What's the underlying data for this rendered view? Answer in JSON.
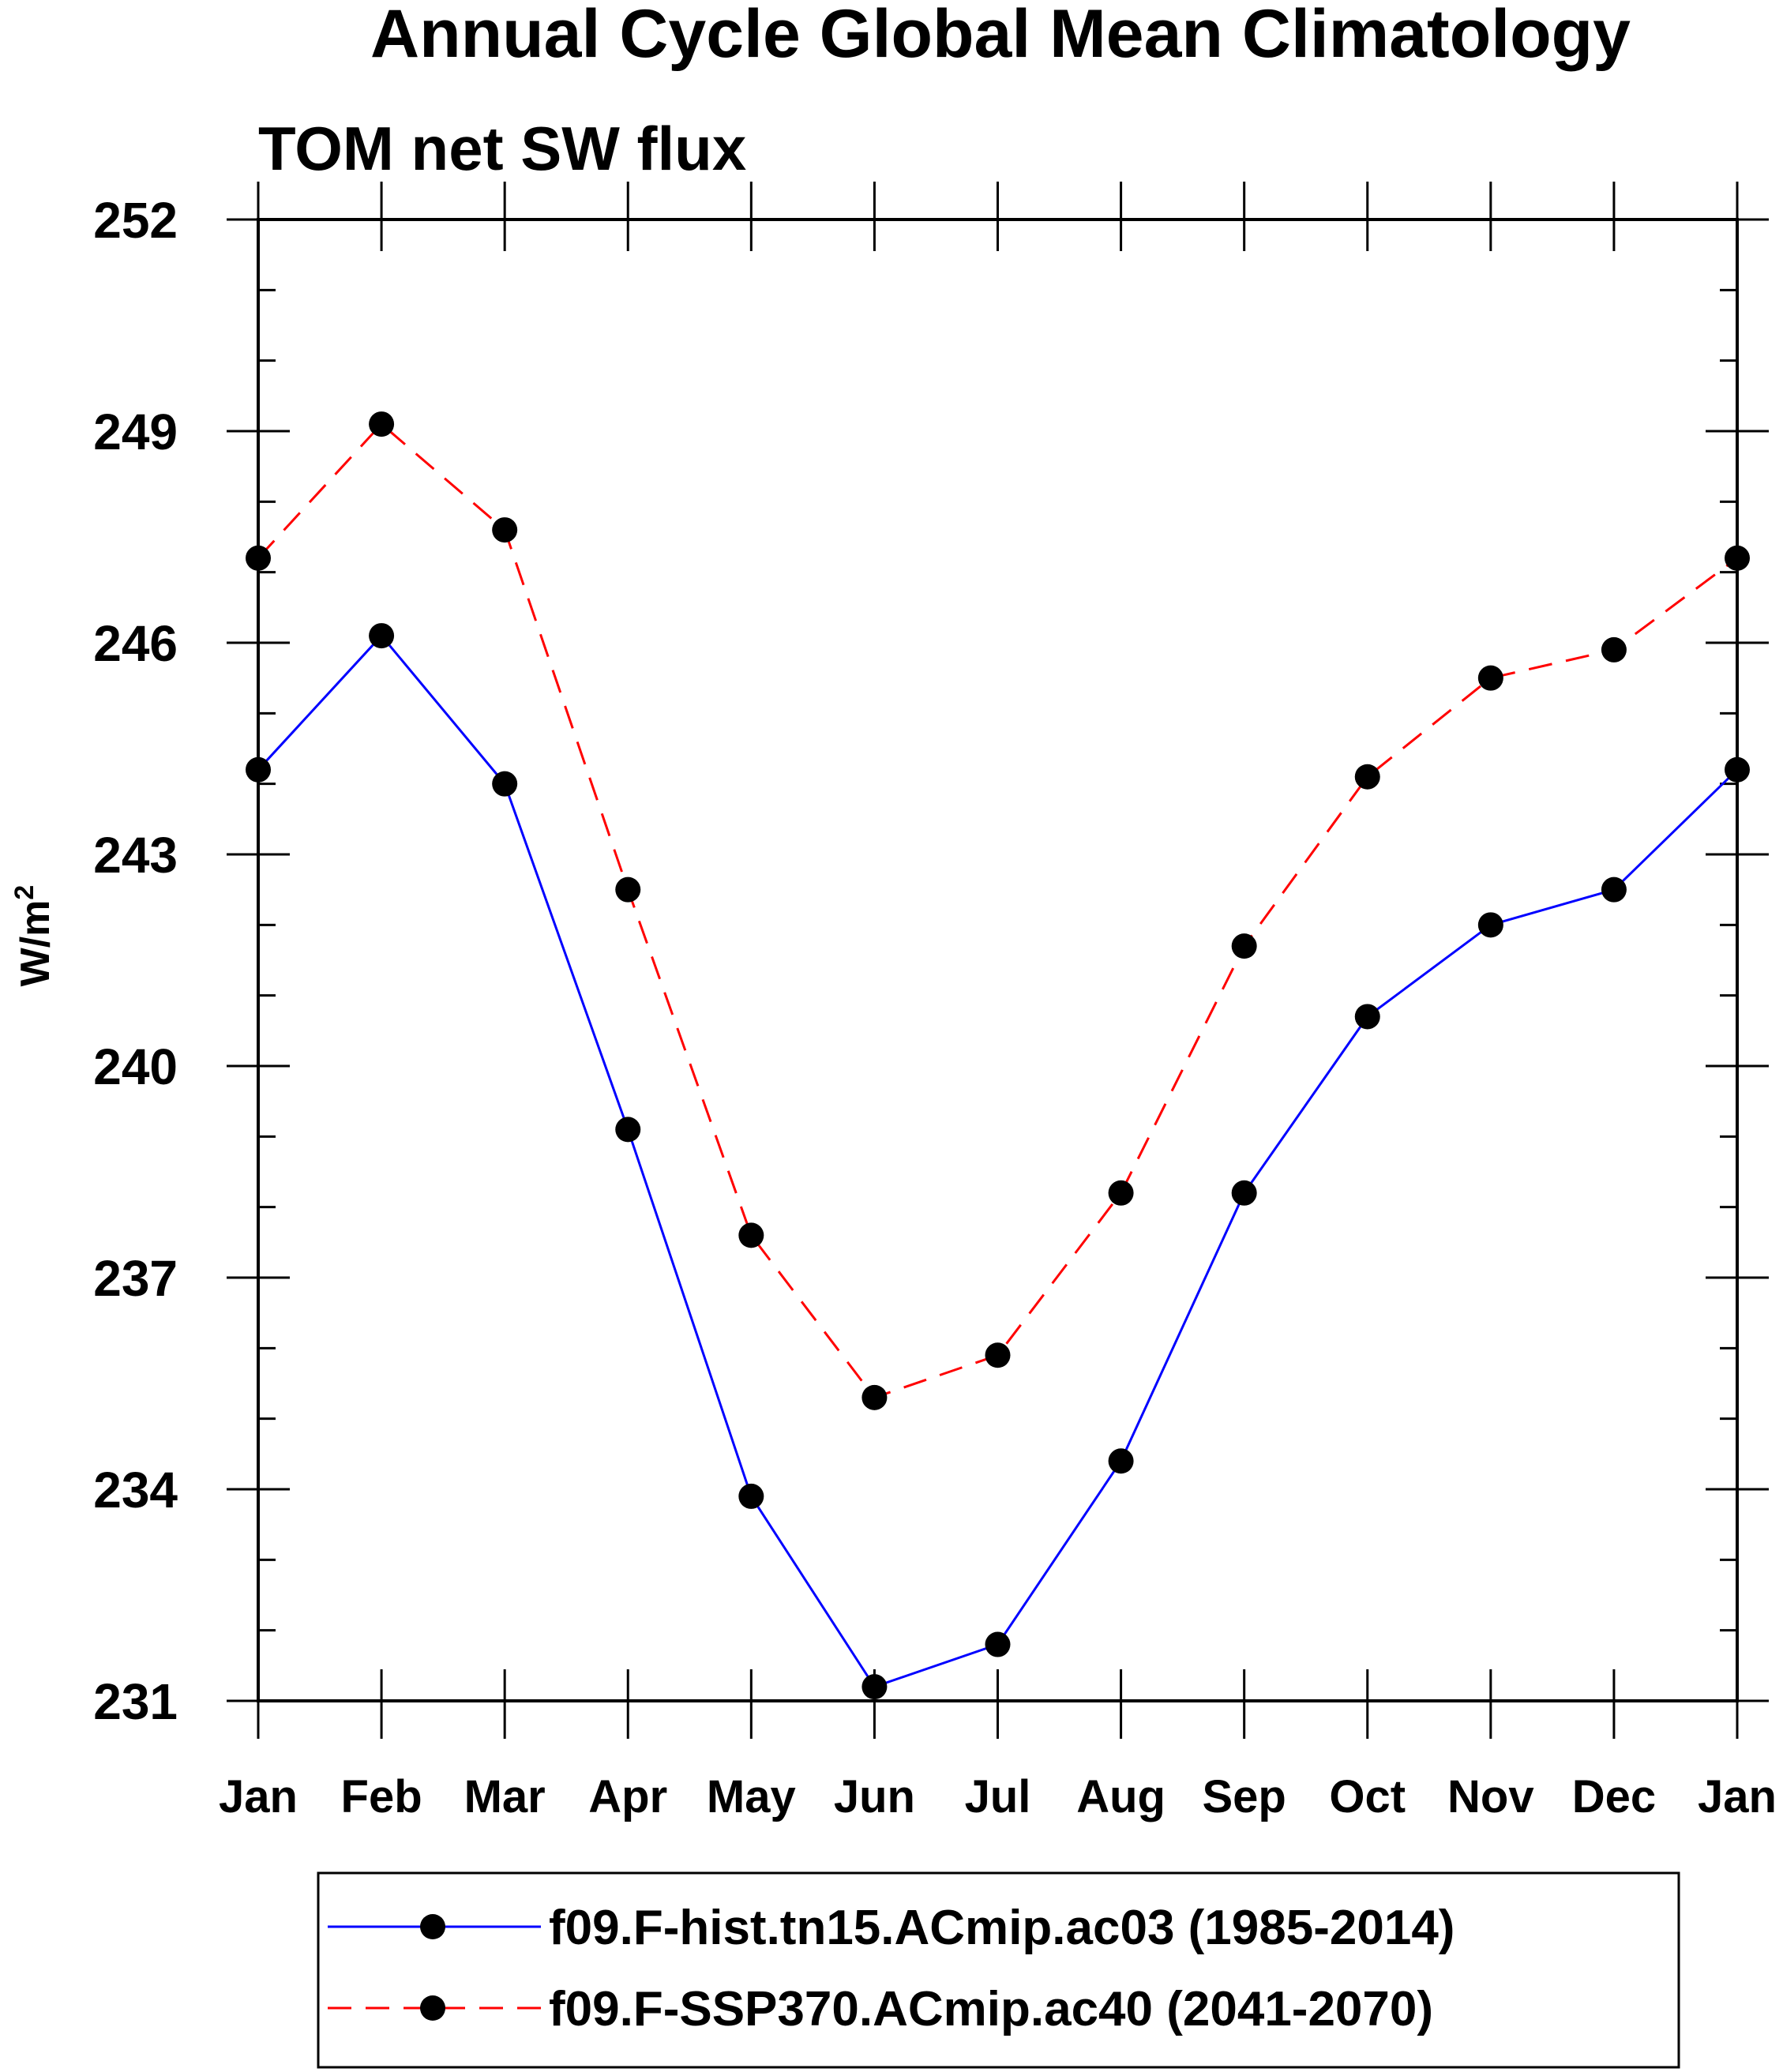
{
  "chart_data": {
    "type": "line",
    "title": "Annual Cycle Global Mean Climatology",
    "subtitle": "TOM net SW flux",
    "xlabel": "",
    "ylabel": "W/m",
    "ylabel_superscript": "2",
    "categories": [
      "Jan",
      "Feb",
      "Mar",
      "Apr",
      "May",
      "Jun",
      "Jul",
      "Aug",
      "Sep",
      "Oct",
      "Nov",
      "Dec",
      "Jan"
    ],
    "ylim": [
      231,
      252
    ],
    "yticks": [
      "252",
      "249",
      "246",
      "243",
      "240",
      "237",
      "234",
      "231"
    ],
    "yminor_step": 1,
    "series": [
      {
        "name": "f09.F-hist.tn15.ACmip.ac03 (1985-2014)",
        "color": "#0000ff",
        "dash": "solid",
        "marker": "filled-circle",
        "values": [
          244.2,
          246.1,
          244.0,
          239.1,
          233.9,
          231.2,
          231.8,
          234.4,
          238.2,
          240.7,
          242.0,
          242.5,
          244.2
        ]
      },
      {
        "name": "f09.F-SSP370.ACmip.ac40 (2041-2070)",
        "color": "#ff0000",
        "dash": "dashed",
        "marker": "filled-circle",
        "values": [
          247.2,
          249.1,
          247.6,
          242.5,
          237.6,
          235.3,
          235.9,
          238.2,
          241.7,
          244.1,
          245.5,
          245.9,
          247.2
        ]
      }
    ],
    "legend_position": "bottom"
  }
}
